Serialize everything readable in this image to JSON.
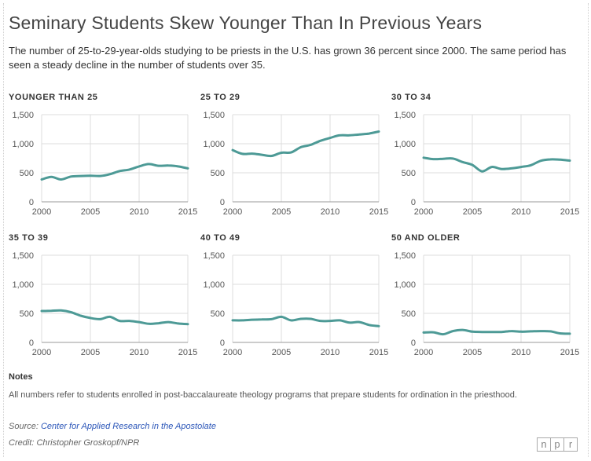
{
  "title": "Seminary Students Skew Younger Than In Previous Years",
  "subtitle": "The number of 25-to-29-year-olds studying to be priests in the U.S. has grown 36 percent since 2000. The same period has seen a steady decline in the number of students over 35.",
  "chart_data": [
    {
      "type": "line",
      "title": "YOUNGER THAN 25",
      "x": [
        2000,
        2001,
        2002,
        2003,
        2004,
        2005,
        2006,
        2007,
        2008,
        2009,
        2010,
        2011,
        2012,
        2013,
        2014,
        2015
      ],
      "values": [
        385,
        430,
        385,
        435,
        445,
        450,
        445,
        475,
        530,
        555,
        610,
        650,
        620,
        625,
        610,
        575
      ],
      "xlim": [
        2000,
        2015
      ],
      "ylim": [
        0,
        1500
      ],
      "xticks": [
        "2000",
        "2005",
        "2010",
        "2015"
      ],
      "yticks": [
        "0",
        "500",
        "1,000",
        "1,500"
      ],
      "color": "#4d9a96"
    },
    {
      "type": "line",
      "title": "25 TO 29",
      "x": [
        2000,
        2001,
        2002,
        2003,
        2004,
        2005,
        2006,
        2007,
        2008,
        2009,
        2010,
        2011,
        2012,
        2013,
        2014,
        2015
      ],
      "values": [
        890,
        825,
        830,
        810,
        790,
        845,
        850,
        940,
        980,
        1050,
        1100,
        1145,
        1145,
        1160,
        1175,
        1210
      ],
      "xlim": [
        2000,
        2015
      ],
      "ylim": [
        0,
        1500
      ],
      "xticks": [
        "2000",
        "2005",
        "2010",
        "2015"
      ],
      "yticks": [
        "0",
        "500",
        "1,000",
        "1,500"
      ],
      "color": "#4d9a96"
    },
    {
      "type": "line",
      "title": "30 TO 34",
      "x": [
        2000,
        2001,
        2002,
        2003,
        2004,
        2005,
        2006,
        2007,
        2008,
        2009,
        2010,
        2011,
        2012,
        2013,
        2014,
        2015
      ],
      "values": [
        760,
        735,
        740,
        745,
        685,
        635,
        525,
        600,
        565,
        575,
        600,
        630,
        705,
        730,
        725,
        710
      ],
      "xlim": [
        2000,
        2015
      ],
      "ylim": [
        0,
        1500
      ],
      "xticks": [
        "2000",
        "2005",
        "2010",
        "2015"
      ],
      "yticks": [
        "0",
        "500",
        "1,000",
        "1,500"
      ],
      "color": "#4d9a96"
    },
    {
      "type": "line",
      "title": "35 TO 39",
      "x": [
        2000,
        2001,
        2002,
        2003,
        2004,
        2005,
        2006,
        2007,
        2008,
        2009,
        2010,
        2011,
        2012,
        2013,
        2014,
        2015
      ],
      "values": [
        540,
        545,
        550,
        520,
        460,
        420,
        400,
        440,
        370,
        370,
        350,
        320,
        330,
        350,
        325,
        315
      ],
      "xlim": [
        2000,
        2015
      ],
      "ylim": [
        0,
        1500
      ],
      "xticks": [
        "2000",
        "2005",
        "2010",
        "2015"
      ],
      "yticks": [
        "0",
        "500",
        "1,000",
        "1,500"
      ],
      "color": "#4d9a96"
    },
    {
      "type": "line",
      "title": "40 TO 49",
      "x": [
        2000,
        2001,
        2002,
        2003,
        2004,
        2005,
        2006,
        2007,
        2008,
        2009,
        2010,
        2011,
        2012,
        2013,
        2014,
        2015
      ],
      "values": [
        380,
        380,
        390,
        395,
        400,
        440,
        380,
        405,
        405,
        370,
        370,
        380,
        340,
        350,
        300,
        280
      ],
      "xlim": [
        2000,
        2015
      ],
      "ylim": [
        0,
        1500
      ],
      "xticks": [
        "2000",
        "2005",
        "2010",
        "2015"
      ],
      "yticks": [
        "0",
        "500",
        "1,000",
        "1,500"
      ],
      "color": "#4d9a96"
    },
    {
      "type": "line",
      "title": "50 AND OLDER",
      "x": [
        2000,
        2001,
        2002,
        2003,
        2004,
        2005,
        2006,
        2007,
        2008,
        2009,
        2010,
        2011,
        2012,
        2013,
        2014,
        2015
      ],
      "values": [
        170,
        175,
        140,
        195,
        215,
        185,
        180,
        180,
        180,
        195,
        185,
        190,
        195,
        190,
        155,
        150
      ],
      "xlim": [
        2000,
        2015
      ],
      "ylim": [
        0,
        1500
      ],
      "xticks": [
        "2000",
        "2005",
        "2010",
        "2015"
      ],
      "yticks": [
        "0",
        "500",
        "1,000",
        "1,500"
      ],
      "color": "#4d9a96"
    }
  ],
  "notes": {
    "heading": "Notes",
    "text": "All numbers refer to students enrolled in post-baccalaureate theology programs that prepare students for ordination in the priesthood."
  },
  "source": {
    "label": "Source:",
    "link_text": "Center for Applied Research in the Apostolate"
  },
  "credit": "Credit: Christopher Groskopf/NPR",
  "logo": [
    "n",
    "p",
    "r"
  ]
}
